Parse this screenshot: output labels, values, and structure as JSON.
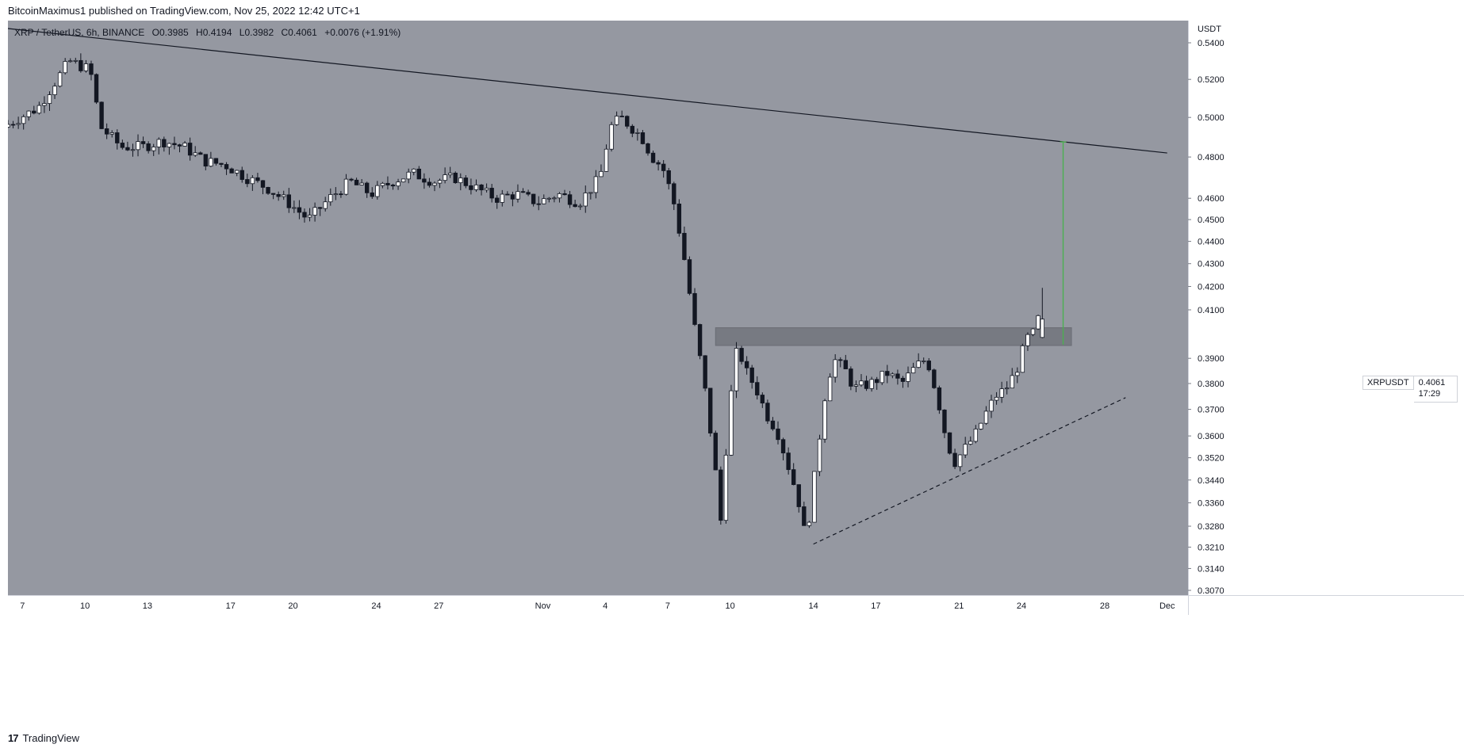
{
  "header": {
    "published_text": "BitcoinMaximus1 published on TradingView.com, Nov 25, 2022 12:42 UTC+1"
  },
  "legend": {
    "pair": "XRP / TetherUS, 6h, BINANCE",
    "o_label": "O",
    "o_value": "0.3985",
    "h_label": "H",
    "h_value": "0.4194",
    "l_label": "L",
    "l_value": "0.3982",
    "c_label": "C",
    "c_value": "0.4061",
    "change": "+0.0076 (+1.91%)"
  },
  "price_tag": {
    "symbol": "XRPUSDT",
    "price": "0.4061",
    "countdown": "17:29"
  },
  "footer": {
    "brand": "TradingView",
    "logo_glyph": "17"
  },
  "colors": {
    "background": "#9598a1",
    "candle_up": "#ffffff",
    "candle_down": "#131722",
    "resistance_zone": "#777a82",
    "measure_line": "#4caf50",
    "trendline": "#131722"
  },
  "chart_data": {
    "type": "candlestick",
    "title": "XRP / TetherUS, 6h, BINANCE",
    "y_axis_unit": "USDT",
    "y_scale": "log",
    "ylim": [
      0.3055,
      0.5525
    ],
    "y_ticks": [
      "0.5400",
      "0.5200",
      "0.5000",
      "0.4800",
      "0.4600",
      "0.4500",
      "0.4400",
      "0.4300",
      "0.4200",
      "0.4100",
      "0.3900",
      "0.3800",
      "0.3700",
      "0.3600",
      "0.3520",
      "0.3440",
      "0.3360",
      "0.3280",
      "0.3210",
      "0.3140",
      "0.3070"
    ],
    "x_ticks": [
      {
        "label": "7",
        "day": 7
      },
      {
        "label": "10",
        "day": 10
      },
      {
        "label": "13",
        "day": 13
      },
      {
        "label": "17",
        "day": 17
      },
      {
        "label": "20",
        "day": 20
      },
      {
        "label": "24",
        "day": 24
      },
      {
        "label": "27",
        "day": 27
      },
      {
        "label": "Nov",
        "day": 32
      },
      {
        "label": "4",
        "day": 35
      },
      {
        "label": "7",
        "day": 38
      },
      {
        "label": "10",
        "day": 41
      },
      {
        "label": "14",
        "day": 45
      },
      {
        "label": "17",
        "day": 48
      },
      {
        "label": "21",
        "day": 52
      },
      {
        "label": "24",
        "day": 55
      },
      {
        "label": "28",
        "day": 59
      },
      {
        "label": "Dec",
        "day": 62
      }
    ],
    "x_range_days": [
      6.3,
      63.0
    ],
    "candle_period_days": 0.25,
    "candles_close": [
      [
        6.3,
        0.495
      ],
      [
        8,
        0.505
      ],
      [
        9.5,
        0.53
      ],
      [
        10.5,
        0.525
      ],
      [
        11,
        0.495
      ],
      [
        12,
        0.485
      ],
      [
        13,
        0.485
      ],
      [
        14,
        0.488
      ],
      [
        15,
        0.485
      ],
      [
        16,
        0.478
      ],
      [
        17,
        0.476
      ],
      [
        18,
        0.47
      ],
      [
        19,
        0.465
      ],
      [
        20,
        0.458
      ],
      [
        21,
        0.45
      ],
      [
        22,
        0.46
      ],
      [
        23,
        0.468
      ],
      [
        24,
        0.462
      ],
      [
        25,
        0.468
      ],
      [
        26,
        0.472
      ],
      [
        27,
        0.468
      ],
      [
        28,
        0.47
      ],
      [
        29,
        0.465
      ],
      [
        30,
        0.46
      ],
      [
        31,
        0.462
      ],
      [
        32,
        0.458
      ],
      [
        33,
        0.462
      ],
      [
        34,
        0.458
      ],
      [
        35,
        0.47
      ],
      [
        35.5,
        0.495
      ],
      [
        36,
        0.5
      ],
      [
        36.5,
        0.495
      ],
      [
        37,
        0.49
      ],
      [
        37.5,
        0.48
      ],
      [
        38,
        0.475
      ],
      [
        38.5,
        0.46
      ],
      [
        39,
        0.435
      ],
      [
        39.5,
        0.405
      ],
      [
        40,
        0.38
      ],
      [
        40.5,
        0.35
      ],
      [
        40.8,
        0.33
      ],
      [
        41.2,
        0.37
      ],
      [
        41.6,
        0.395
      ],
      [
        42,
        0.385
      ],
      [
        42.5,
        0.378
      ],
      [
        43,
        0.368
      ],
      [
        43.5,
        0.362
      ],
      [
        44,
        0.35
      ],
      [
        44.5,
        0.338
      ],
      [
        44.9,
        0.323
      ],
      [
        45.3,
        0.345
      ],
      [
        45.8,
        0.375
      ],
      [
        46.2,
        0.39
      ],
      [
        46.8,
        0.385
      ],
      [
        47.2,
        0.378
      ],
      [
        48,
        0.38
      ],
      [
        48.8,
        0.384
      ],
      [
        49.5,
        0.38
      ],
      [
        50.2,
        0.387
      ],
      [
        50.7,
        0.39
      ],
      [
        51.2,
        0.375
      ],
      [
        51.6,
        0.36
      ],
      [
        52,
        0.35
      ],
      [
        52.5,
        0.355
      ],
      [
        53,
        0.36
      ],
      [
        53.5,
        0.368
      ],
      [
        54,
        0.375
      ],
      [
        54.5,
        0.378
      ],
      [
        55,
        0.385
      ],
      [
        55.5,
        0.398
      ],
      [
        55.8,
        0.4
      ],
      [
        56,
        0.4061
      ]
    ],
    "last_candle": {
      "open": 0.3985,
      "high": 0.4194,
      "low": 0.3982,
      "close": 0.4061
    },
    "annotations": {
      "descending_resistance": {
        "start": [
          6.3,
          0.548
        ],
        "end": [
          62.0,
          0.482
        ]
      },
      "ascending_support_dashed": {
        "start": [
          45.0,
          0.322
        ],
        "end": [
          60.0,
          0.3745
        ]
      },
      "horizontal_zone": {
        "day_start": 40.3,
        "day_end": 57.4,
        "price_low": 0.3952,
        "price_high": 0.4025
      },
      "target_measure": {
        "day": 57.0,
        "price_from": 0.3955,
        "price_to": 0.4875
      }
    }
  }
}
